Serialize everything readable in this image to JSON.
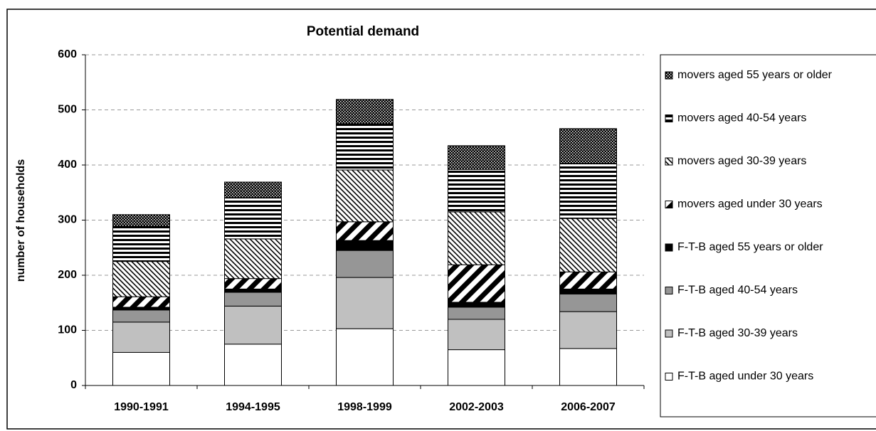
{
  "chart_data": {
    "type": "stacked-bar",
    "title": "Potential demand",
    "y_label": "number of households",
    "categories": [
      "1990-1991",
      "1994-1995",
      "1998-1999",
      "2002-2003",
      "2006-2007"
    ],
    "ylim": [
      0,
      600
    ],
    "yticks": [
      0,
      100,
      200,
      300,
      400,
      500,
      600
    ],
    "grid": true,
    "legend": "right",
    "series": [
      {
        "name": "F-T-B aged under 30 years",
        "color": "#ffffff",
        "pattern": "solid",
        "values": [
          60,
          75,
          103,
          65,
          67
        ]
      },
      {
        "name": "F-T-B aged 30-39 years",
        "color": "#c0c0c0",
        "pattern": "solid",
        "values": [
          55,
          69,
          93,
          55,
          67
        ]
      },
      {
        "name": "F-T-B aged 40-54 years",
        "color": "#969696",
        "pattern": "solid",
        "values": [
          22,
          25,
          49,
          22,
          32
        ]
      },
      {
        "name": "F-T-B aged 55 years or older",
        "color": "#000000",
        "pattern": "solid",
        "values": [
          5,
          6,
          18,
          9,
          9
        ]
      },
      {
        "name": "movers aged under 30 years",
        "color": "#000000",
        "pattern": "wide-diagonal",
        "values": [
          19,
          19,
          34,
          68,
          31
        ]
      },
      {
        "name": "movers aged 30-39 years",
        "color": "#000000",
        "pattern": "narrow-diagonal",
        "values": [
          64,
          72,
          94,
          96,
          97
        ]
      },
      {
        "name": "movers aged 40-54 years",
        "color": "#000000",
        "pattern": "horizontal",
        "values": [
          64,
          75,
          84,
          77,
          100
        ]
      },
      {
        "name": "movers aged 55 years or older",
        "color": "#000000",
        "pattern": "dots",
        "values": [
          21,
          28,
          44,
          43,
          63
        ]
      }
    ]
  }
}
